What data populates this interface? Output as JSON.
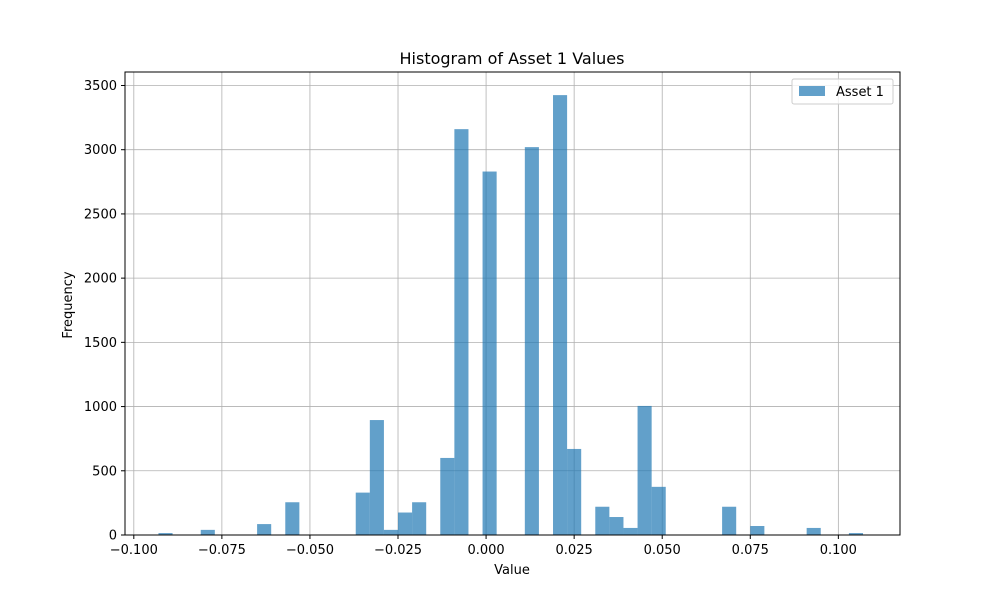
{
  "chart_data": {
    "type": "bar",
    "title": "Histogram of Asset 1 Values",
    "xlabel": "Value",
    "ylabel": "Frequency",
    "xlim": [
      -0.1025,
      0.1175
    ],
    "ylim": [
      0,
      3605
    ],
    "xticks": [
      -0.1,
      -0.075,
      -0.05,
      -0.025,
      0.0,
      0.025,
      0.05,
      0.075,
      0.1
    ],
    "xtick_labels": [
      "−0.100",
      "−0.075",
      "−0.050",
      "−0.025",
      "0.000",
      "0.025",
      "0.050",
      "0.075",
      "0.100"
    ],
    "yticks": [
      0,
      500,
      1000,
      1500,
      2000,
      2500,
      3000,
      3500
    ],
    "ytick_labels": [
      "0",
      "500",
      "1000",
      "1500",
      "2000",
      "2500",
      "3000",
      "3500"
    ],
    "grid": true,
    "legend": {
      "position": "top-right",
      "entries": [
        "Asset 1"
      ]
    },
    "bin_width": 0.004,
    "series": [
      {
        "name": "Asset 1",
        "color": "#1f77b4",
        "opacity": 0.7,
        "bins": [
          {
            "x": -0.091,
            "value": 15
          },
          {
            "x": -0.079,
            "value": 40
          },
          {
            "x": -0.063,
            "value": 85
          },
          {
            "x": -0.055,
            "value": 255
          },
          {
            "x": -0.035,
            "value": 330
          },
          {
            "x": -0.031,
            "value": 895
          },
          {
            "x": -0.027,
            "value": 40
          },
          {
            "x": -0.023,
            "value": 175
          },
          {
            "x": -0.019,
            "value": 255
          },
          {
            "x": -0.011,
            "value": 600
          },
          {
            "x": -0.007,
            "value": 3160
          },
          {
            "x": 0.001,
            "value": 2830
          },
          {
            "x": 0.013,
            "value": 3020
          },
          {
            "x": 0.021,
            "value": 3425
          },
          {
            "x": 0.025,
            "value": 670
          },
          {
            "x": 0.033,
            "value": 220
          },
          {
            "x": 0.037,
            "value": 140
          },
          {
            "x": 0.041,
            "value": 55
          },
          {
            "x": 0.045,
            "value": 1005
          },
          {
            "x": 0.049,
            "value": 375
          },
          {
            "x": 0.069,
            "value": 220
          },
          {
            "x": 0.077,
            "value": 70
          },
          {
            "x": 0.093,
            "value": 55
          },
          {
            "x": 0.105,
            "value": 15
          }
        ]
      }
    ]
  }
}
